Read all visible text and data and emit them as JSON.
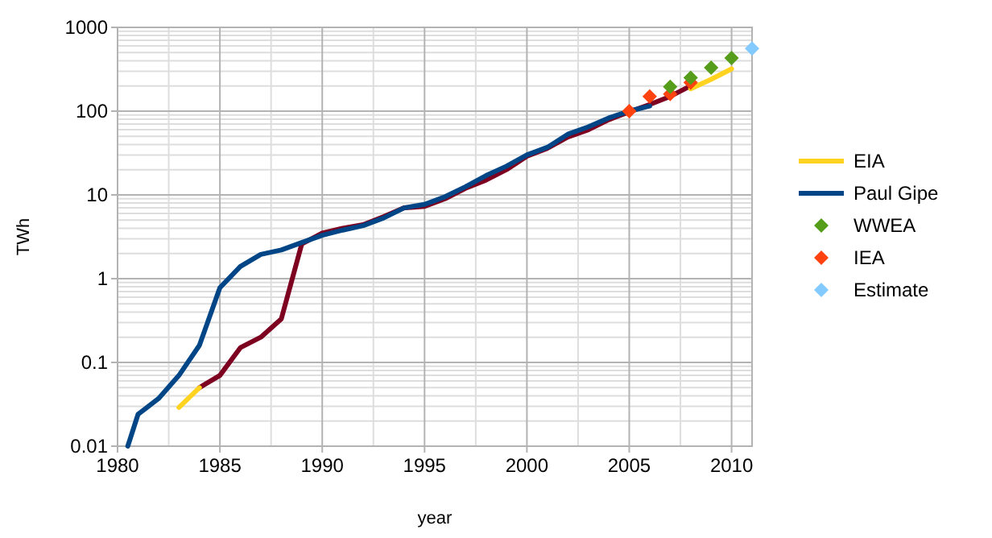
{
  "chart_data": {
    "type": "line",
    "xlabel": "year",
    "ylabel": "TWh",
    "log": "y",
    "grid": true,
    "legend": "right",
    "xlim": [
      1980,
      2011
    ],
    "xticks": [
      1980,
      1985,
      1990,
      1995,
      2000,
      2005,
      2010
    ],
    "ylim": [
      0.01,
      1000
    ],
    "yticks": [
      0.01,
      0.1,
      1,
      10,
      100,
      1000
    ],
    "series": [
      {
        "color": "#7e0021",
        "x": [
          1984,
          1985,
          1986,
          1987,
          1988,
          1989,
          1990,
          1991,
          1992,
          1993,
          1994,
          1995,
          1996,
          1997,
          1998,
          1999,
          2000,
          2001,
          2002,
          2003,
          2004,
          2005,
          2006,
          2007,
          2008
        ],
        "values": [
          0.05,
          0.07,
          0.15,
          0.2,
          0.33,
          2.6,
          3.5,
          4,
          4.4,
          5.5,
          7,
          7.3,
          9,
          12,
          15,
          20,
          29,
          36,
          49,
          60,
          79,
          98,
          120,
          150,
          200
        ]
      },
      {
        "name": "EIA",
        "color": "#ffd320",
        "x": [
          1983,
          1984,
          1996,
          2008,
          2009,
          2010
        ],
        "values": [
          0.029,
          0.05,
          null,
          185,
          240,
          320
        ]
      },
      {
        "name": "Paul Gipe",
        "color": "#004586",
        "x": [
          1980.5,
          1981,
          1982,
          1983,
          1984,
          1985,
          1986,
          1987,
          1988,
          1989,
          1990,
          1991,
          1992,
          1993,
          1994,
          1995,
          1996,
          1997,
          1998,
          1999,
          2000,
          2001,
          2002,
          2003,
          2004,
          2005,
          2006
        ],
        "values": [
          0.01,
          0.024,
          0.037,
          0.07,
          0.16,
          0.78,
          1.4,
          1.95,
          2.2,
          2.7,
          3.3,
          3.8,
          4.3,
          5.3,
          7,
          7.7,
          9.5,
          12.5,
          17,
          22,
          30,
          37,
          53,
          65,
          83,
          100,
          115
        ]
      },
      {
        "type": "scatter",
        "marker": "diamond",
        "name": "WWEA",
        "color": "#579d1c",
        "x": [
          2007,
          2008,
          2009,
          2010
        ],
        "values": [
          195,
          250,
          330,
          430
        ]
      },
      {
        "type": "scatter",
        "marker": "diamond",
        "name": "IEA",
        "color": "#ff420e",
        "x": [
          2005,
          2006,
          2007,
          2008
        ],
        "values": [
          100,
          150,
          160,
          220
        ]
      },
      {
        "type": "scatter",
        "marker": "diamond",
        "name": "Estimate",
        "color": "#83caff",
        "x": [
          2011
        ],
        "values": [
          560
        ]
      }
    ]
  }
}
